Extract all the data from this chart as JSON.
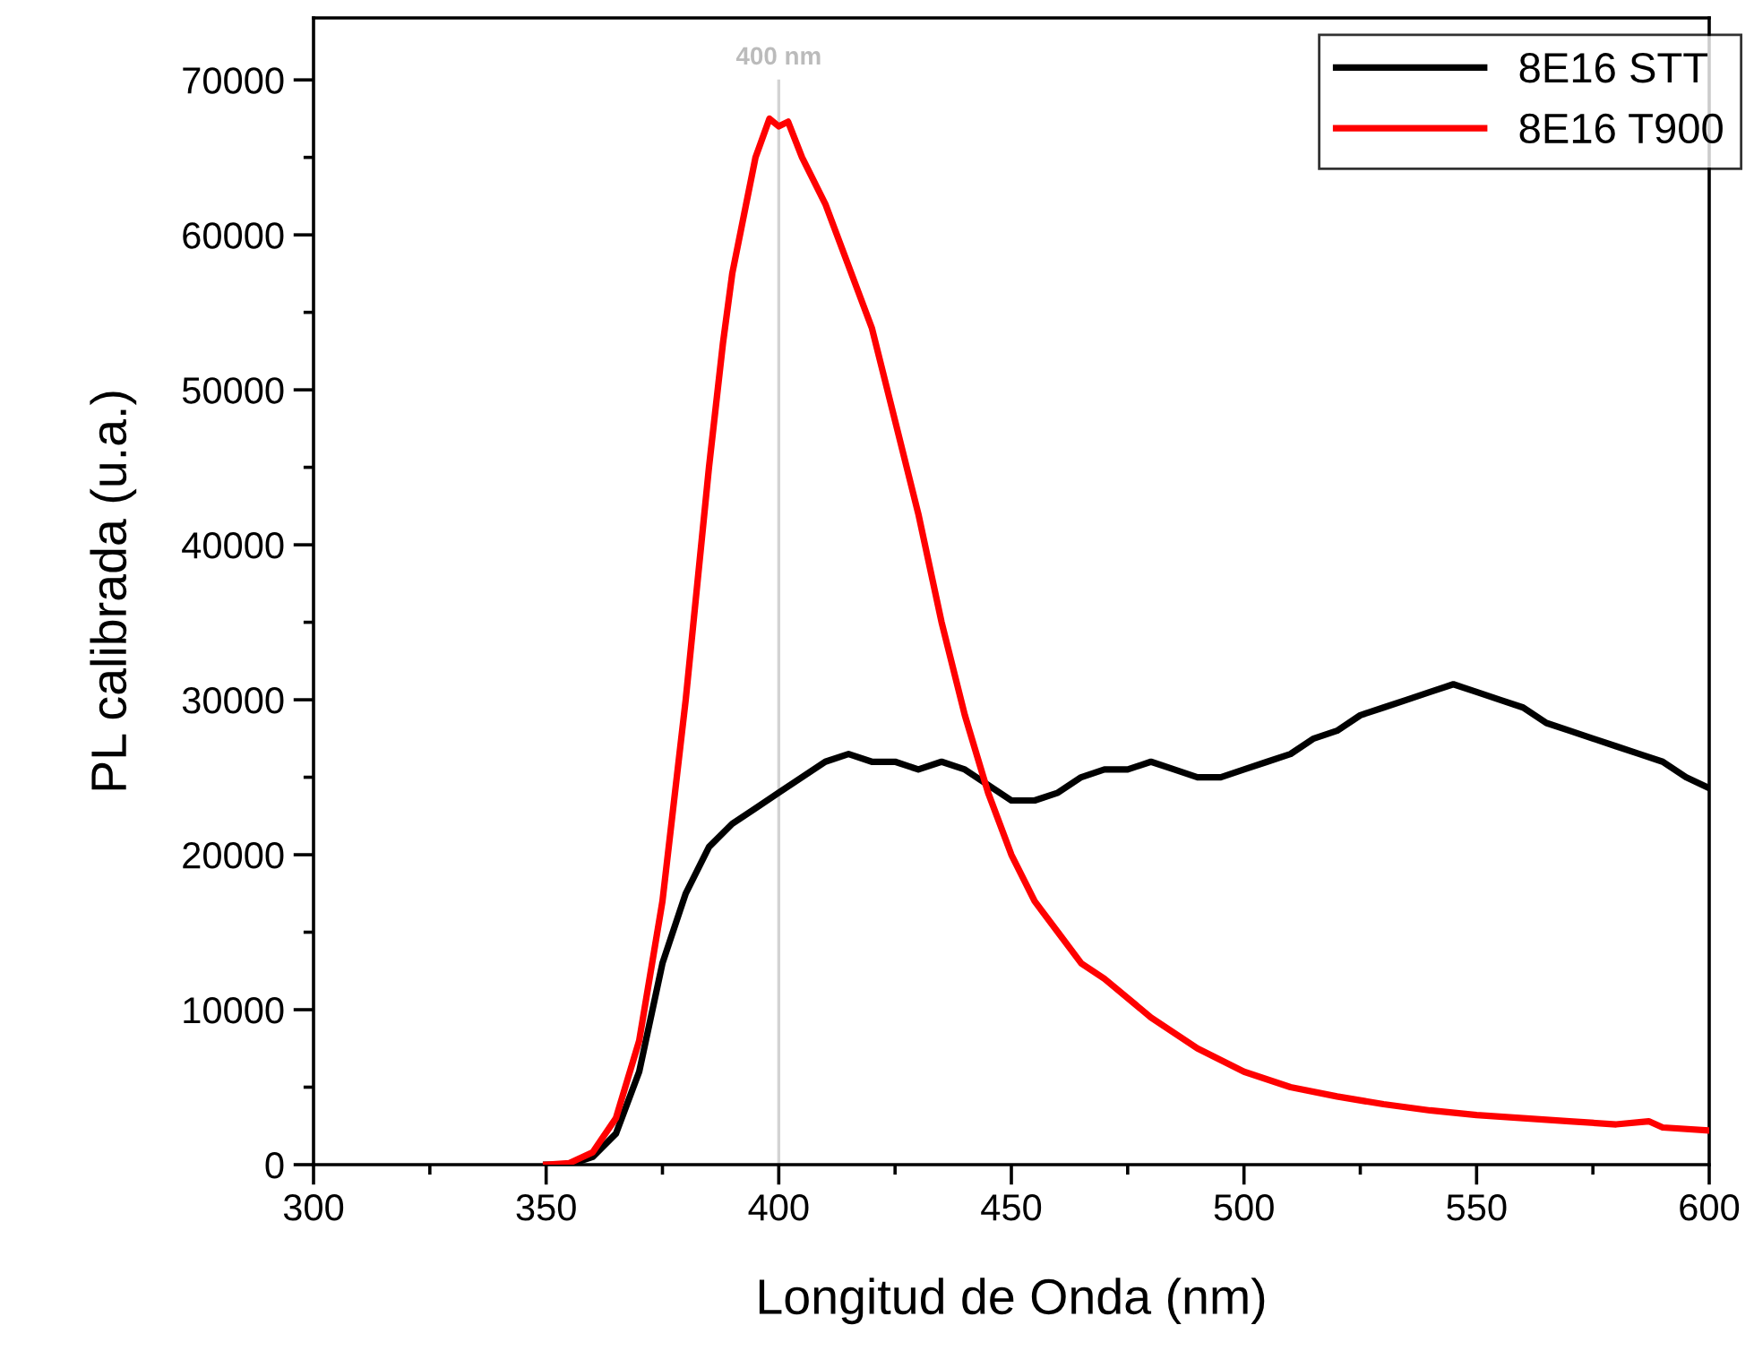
{
  "chart_data": {
    "type": "line",
    "xlabel": "Longitud de Onda (nm)",
    "ylabel": "PL calibrada (u.a.)",
    "xlim": [
      300,
      600
    ],
    "xticks": [
      300,
      350,
      400,
      450,
      500,
      550,
      600
    ],
    "ylim": [
      0,
      74000
    ],
    "yticks": [
      0,
      10000,
      20000,
      30000,
      40000,
      50000,
      60000,
      70000
    ],
    "grid": false,
    "legend": "top right",
    "marker": "none",
    "line_style": "solid",
    "ref_lines": [
      {
        "axis": "x",
        "value": 400,
        "label": "400 nm",
        "color": "#d3d3d3"
      }
    ],
    "series": [
      {
        "name": "8E16 STT",
        "color": "#000000",
        "x": [
          350,
          355,
          360,
          365,
          370,
          375,
          380,
          385,
          390,
          395,
          400,
          405,
          410,
          415,
          420,
          425,
          430,
          435,
          440,
          445,
          450,
          455,
          460,
          465,
          470,
          475,
          480,
          485,
          490,
          495,
          500,
          505,
          510,
          515,
          520,
          525,
          530,
          535,
          540,
          545,
          550,
          555,
          560,
          565,
          570,
          575,
          580,
          585,
          590,
          595,
          600
        ],
        "values": [
          0,
          0,
          500,
          2000,
          6000,
          13000,
          17500,
          20500,
          22000,
          23000,
          24000,
          25000,
          26000,
          26500,
          26000,
          26000,
          25500,
          26000,
          25500,
          24500,
          23500,
          23500,
          24000,
          25000,
          25500,
          25500,
          26000,
          25500,
          25000,
          25000,
          25500,
          26000,
          26500,
          27500,
          28000,
          29000,
          29500,
          30000,
          30500,
          31000,
          30500,
          30000,
          29500,
          28500,
          28000,
          27500,
          27000,
          26500,
          26000,
          25000,
          24300
        ]
      },
      {
        "name": "8E16 T900",
        "color": "#ff0000",
        "x": [
          350,
          355,
          360,
          365,
          370,
          375,
          380,
          385,
          388,
          390,
          393,
          395,
          398,
          400,
          402,
          405,
          410,
          415,
          420,
          425,
          430,
          435,
          440,
          445,
          450,
          455,
          460,
          465,
          470,
          480,
          490,
          500,
          510,
          520,
          530,
          540,
          550,
          560,
          570,
          580,
          587,
          590,
          600
        ],
        "values": [
          0,
          100,
          800,
          3000,
          8000,
          17000,
          30000,
          45000,
          53000,
          57500,
          62000,
          65000,
          67500,
          67000,
          67300,
          65000,
          62000,
          58000,
          54000,
          48000,
          42000,
          35000,
          29000,
          24000,
          20000,
          17000,
          15000,
          13000,
          12000,
          9500,
          7500,
          6000,
          5000,
          4400,
          3900,
          3500,
          3200,
          3000,
          2800,
          2600,
          2800,
          2400,
          2200
        ]
      }
    ]
  }
}
